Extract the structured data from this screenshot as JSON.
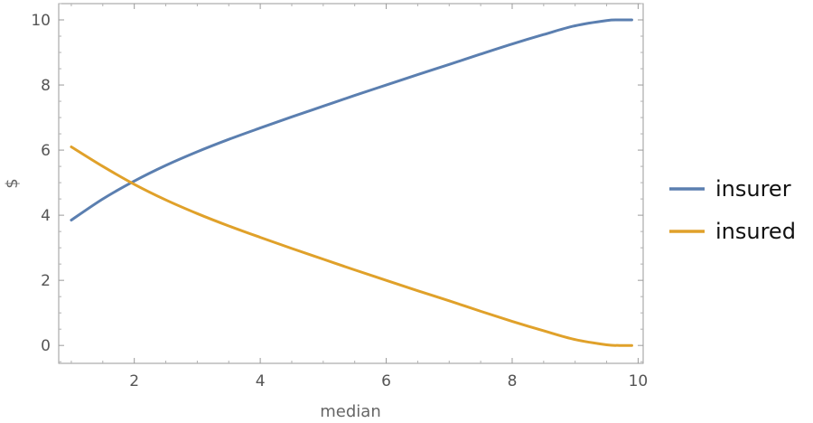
{
  "chart_data": {
    "type": "line",
    "xlabel": "median",
    "ylabel": "$",
    "xlim": [
      0.8,
      10.08
    ],
    "ylim": [
      -0.55,
      10.5
    ],
    "grid": false,
    "frame": true,
    "legend_position": "right",
    "x_ticks": [
      2,
      4,
      6,
      8,
      10
    ],
    "y_ticks": [
      0,
      2,
      4,
      6,
      8,
      10
    ],
    "series": [
      {
        "name": "insurer",
        "color": "#5b7fb0",
        "x": [
          1,
          1.5,
          2,
          2.5,
          3,
          3.5,
          4,
          4.5,
          5,
          5.5,
          6,
          6.5,
          7,
          7.5,
          8,
          8.5,
          9,
          9.5,
          9.7,
          9.9
        ],
        "y": [
          3.85,
          4.5,
          5.05,
          5.53,
          5.95,
          6.33,
          6.68,
          7.02,
          7.35,
          7.68,
          8.0,
          8.32,
          8.63,
          8.95,
          9.26,
          9.55,
          9.82,
          9.98,
          10.0,
          10.0
        ]
      },
      {
        "name": "insured",
        "color": "#e0a12a",
        "x": [
          1,
          1.5,
          2,
          2.5,
          3,
          3.5,
          4,
          4.5,
          5,
          5.5,
          6,
          6.5,
          7,
          7.5,
          8,
          8.5,
          9,
          9.5,
          9.7,
          9.9
        ],
        "y": [
          6.1,
          5.5,
          4.95,
          4.47,
          4.05,
          3.67,
          3.32,
          2.98,
          2.65,
          2.32,
          2.0,
          1.68,
          1.37,
          1.05,
          0.74,
          0.45,
          0.18,
          0.02,
          0.0,
          0.0
        ]
      }
    ]
  }
}
